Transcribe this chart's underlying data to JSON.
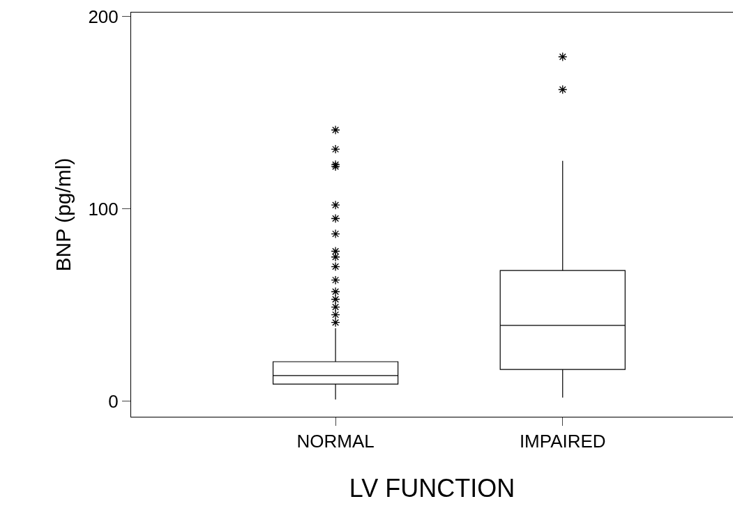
{
  "chart_data": {
    "type": "box",
    "xlabel": "LV FUNCTION",
    "ylabel": "BNP (pg/ml)",
    "categories": [
      "NORMAL",
      "IMPAIRED"
    ],
    "boxes": [
      {
        "low": 1,
        "q1": 9,
        "median": 13.4,
        "q3": 20.6,
        "high": 38,
        "outliers": [
          141,
          131,
          123,
          122,
          102,
          95,
          87,
          78,
          75,
          70,
          63,
          57,
          53,
          49,
          45,
          41
        ]
      },
      {
        "low": 2,
        "q1": 16.6,
        "median": 39.5,
        "q3": 68,
        "high": 125,
        "outliers": [
          179,
          162
        ]
      }
    ],
    "color": "#000000",
    "marker": "star",
    "ylim": [
      -8,
      202
    ],
    "yticks": [
      0,
      100,
      200
    ]
  }
}
